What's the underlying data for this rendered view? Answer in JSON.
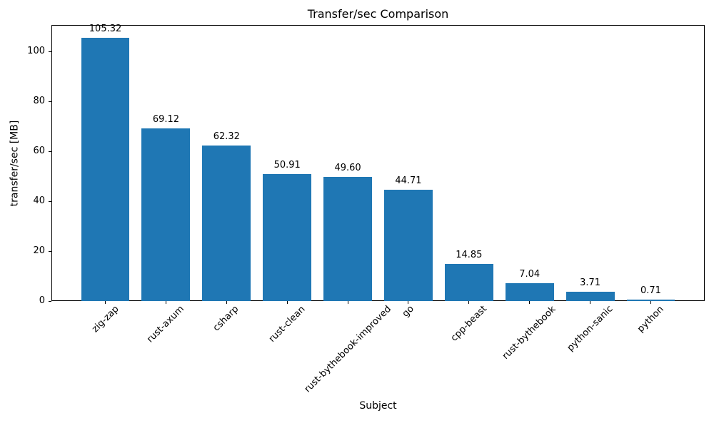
{
  "figure": {
    "background": "#ffffff"
  },
  "chart_data": {
    "type": "bar",
    "title": "Transfer/sec Comparison",
    "xlabel": "Subject",
    "ylabel": "transfer/sec [MB]",
    "categories": [
      "zig-zap",
      "rust-axum",
      "csharp",
      "rust-clean",
      "rust-bythebook-improved",
      "go",
      "cpp-beast",
      "rust-bythebook",
      "python-sanic",
      "python"
    ],
    "values": [
      105.32,
      69.12,
      62.32,
      50.91,
      49.6,
      44.71,
      14.85,
      7.04,
      3.71,
      0.71
    ],
    "value_labels": [
      "105.32",
      "69.12",
      "62.32",
      "50.91",
      "49.60",
      "44.71",
      "14.85",
      "7.04",
      "3.71",
      "0.71"
    ],
    "yticks": [
      0,
      20,
      40,
      60,
      80,
      100
    ],
    "ylim": [
      0,
      110.59
    ],
    "bar_width_fraction": 0.8,
    "bar_color": "#1f77b4",
    "grid": "off",
    "legend": "none",
    "x_tick_label_rotation_deg": 45
  }
}
